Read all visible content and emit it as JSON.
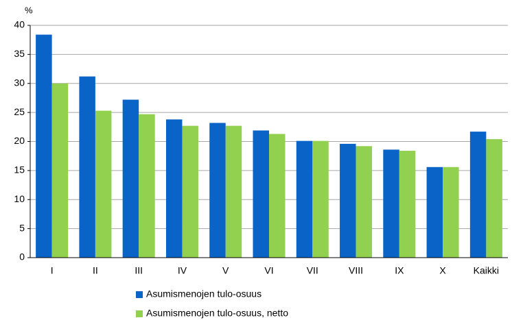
{
  "chart_data": {
    "type": "bar",
    "y_label": "%",
    "categories": [
      "I",
      "II",
      "III",
      "IV",
      "V",
      "VI",
      "VII",
      "VIII",
      "IX",
      "X",
      "Kaikki"
    ],
    "series": [
      {
        "name": "Asumismenojen tulo-osuus",
        "color": "#0a64c8",
        "values": [
          38.4,
          31.2,
          27.2,
          23.8,
          23.2,
          21.9,
          20.1,
          19.6,
          18.6,
          15.6,
          21.7
        ]
      },
      {
        "name": "Asumismenojen tulo-osuus, netto",
        "color": "#92d050",
        "values": [
          30.0,
          25.3,
          24.7,
          22.7,
          22.7,
          21.3,
          20.1,
          19.2,
          18.4,
          15.6,
          20.4
        ]
      }
    ],
    "ylim": [
      0,
      40
    ],
    "yticks": [
      0,
      5,
      10,
      15,
      20,
      25,
      30,
      35,
      40
    ],
    "grid": true
  }
}
